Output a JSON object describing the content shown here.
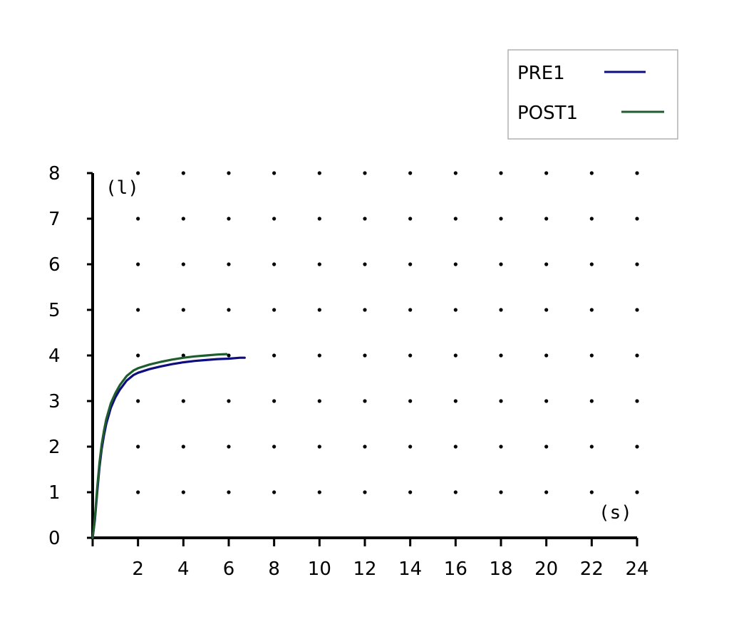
{
  "chart_data": {
    "type": "line",
    "title": "",
    "xlabel": "",
    "ylabel": "",
    "x_unit": "(s)",
    "y_unit": "(l)",
    "xlim": [
      0,
      24
    ],
    "ylim": [
      0,
      8
    ],
    "x_ticks": [
      2,
      4,
      6,
      8,
      10,
      12,
      14,
      16,
      18,
      20,
      22,
      24
    ],
    "y_ticks": [
      0,
      1,
      2,
      3,
      4,
      5,
      6,
      7,
      8
    ],
    "grid": "dotted",
    "legend_position": "top-right",
    "series": [
      {
        "name": "PRE1",
        "color": "#0d0d80",
        "points": [
          [
            0.0,
            0.0
          ],
          [
            0.1,
            0.4
          ],
          [
            0.2,
            1.0
          ],
          [
            0.3,
            1.55
          ],
          [
            0.4,
            1.95
          ],
          [
            0.5,
            2.25
          ],
          [
            0.6,
            2.5
          ],
          [
            0.8,
            2.85
          ],
          [
            1.0,
            3.08
          ],
          [
            1.2,
            3.25
          ],
          [
            1.5,
            3.45
          ],
          [
            1.8,
            3.57
          ],
          [
            2.0,
            3.62
          ],
          [
            2.5,
            3.7
          ],
          [
            3.0,
            3.76
          ],
          [
            3.5,
            3.81
          ],
          [
            4.0,
            3.85
          ],
          [
            4.5,
            3.88
          ],
          [
            5.0,
            3.9
          ],
          [
            5.5,
            3.92
          ],
          [
            6.0,
            3.93
          ],
          [
            6.5,
            3.95
          ],
          [
            6.7,
            3.95
          ]
        ]
      },
      {
        "name": "POST1",
        "color": "#1f5c2e",
        "points": [
          [
            0.0,
            0.0
          ],
          [
            0.1,
            0.45
          ],
          [
            0.2,
            1.1
          ],
          [
            0.3,
            1.65
          ],
          [
            0.4,
            2.05
          ],
          [
            0.5,
            2.35
          ],
          [
            0.6,
            2.6
          ],
          [
            0.8,
            2.95
          ],
          [
            1.0,
            3.17
          ],
          [
            1.2,
            3.35
          ],
          [
            1.5,
            3.55
          ],
          [
            1.8,
            3.67
          ],
          [
            2.0,
            3.72
          ],
          [
            2.5,
            3.8
          ],
          [
            3.0,
            3.86
          ],
          [
            3.5,
            3.91
          ],
          [
            4.0,
            3.95
          ],
          [
            4.5,
            3.98
          ],
          [
            5.0,
            4.0
          ],
          [
            5.5,
            4.02
          ],
          [
            5.9,
            4.03
          ]
        ]
      }
    ]
  }
}
